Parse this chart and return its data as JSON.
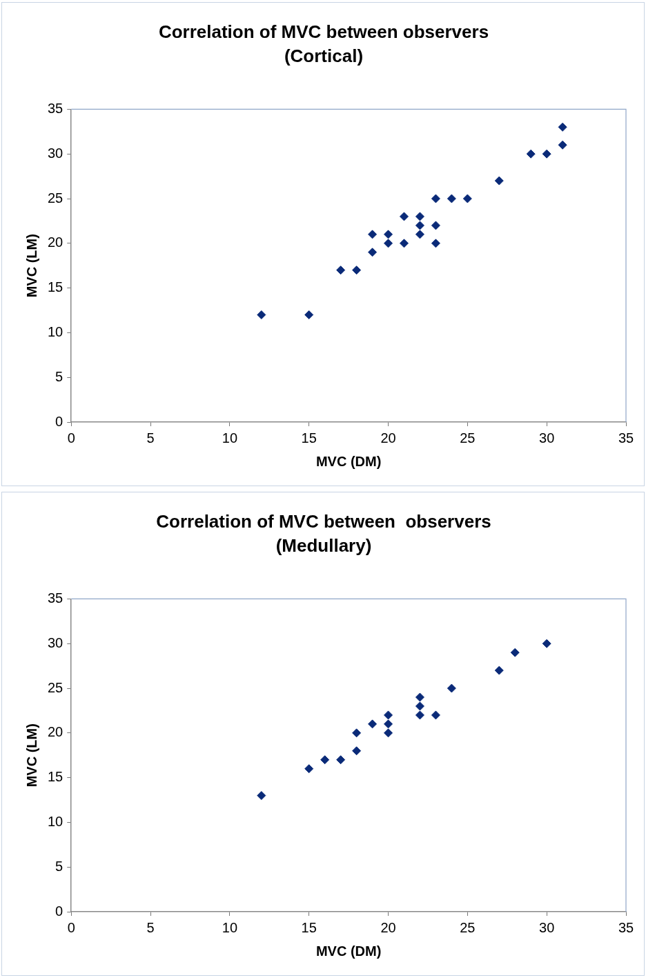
{
  "chart_data": [
    {
      "type": "scatter",
      "title": "Correlation of MVC between observers",
      "subtitle": "(Cortical)",
      "xlabel": "MVC (DM)",
      "ylabel": "MVC (LM)",
      "xlim": [
        0,
        35
      ],
      "ylim": [
        0,
        35
      ],
      "xticks": [
        0,
        5,
        10,
        15,
        20,
        25,
        30,
        35
      ],
      "yticks": [
        0,
        5,
        10,
        15,
        20,
        25,
        30,
        35
      ],
      "grid": false,
      "legend": false,
      "marker": "diamond",
      "series": [
        {
          "color": "#0a2a78",
          "x": [
            12,
            15,
            17,
            18,
            19,
            19,
            20,
            20,
            21,
            21,
            22,
            22,
            22,
            23,
            23,
            23,
            24,
            25,
            27,
            29,
            30,
            31,
            31
          ],
          "values": [
            12,
            12,
            17,
            17,
            21,
            19,
            21,
            20,
            23,
            20,
            23,
            22,
            21,
            25,
            22,
            20,
            25,
            25,
            27,
            30,
            30,
            33,
            31
          ]
        }
      ]
    },
    {
      "type": "scatter",
      "title": "Correlation of MVC between  observers",
      "subtitle": "(Medullary)",
      "xlabel": "MVC (DM)",
      "ylabel": "MVC (LM)",
      "xlim": [
        0,
        35
      ],
      "ylim": [
        0,
        35
      ],
      "xticks": [
        0,
        5,
        10,
        15,
        20,
        25,
        30,
        35
      ],
      "yticks": [
        0,
        5,
        10,
        15,
        20,
        25,
        30,
        35
      ],
      "grid": false,
      "legend": false,
      "marker": "diamond",
      "series": [
        {
          "color": "#0a2a78",
          "x": [
            12,
            15,
            16,
            17,
            18,
            18,
            19,
            20,
            20,
            20,
            22,
            22,
            22,
            23,
            24,
            27,
            28,
            30
          ],
          "values": [
            13,
            16,
            17,
            17,
            20,
            18,
            21,
            22,
            21,
            20,
            24,
            23,
            22,
            22,
            25,
            27,
            29,
            30
          ]
        }
      ]
    }
  ]
}
